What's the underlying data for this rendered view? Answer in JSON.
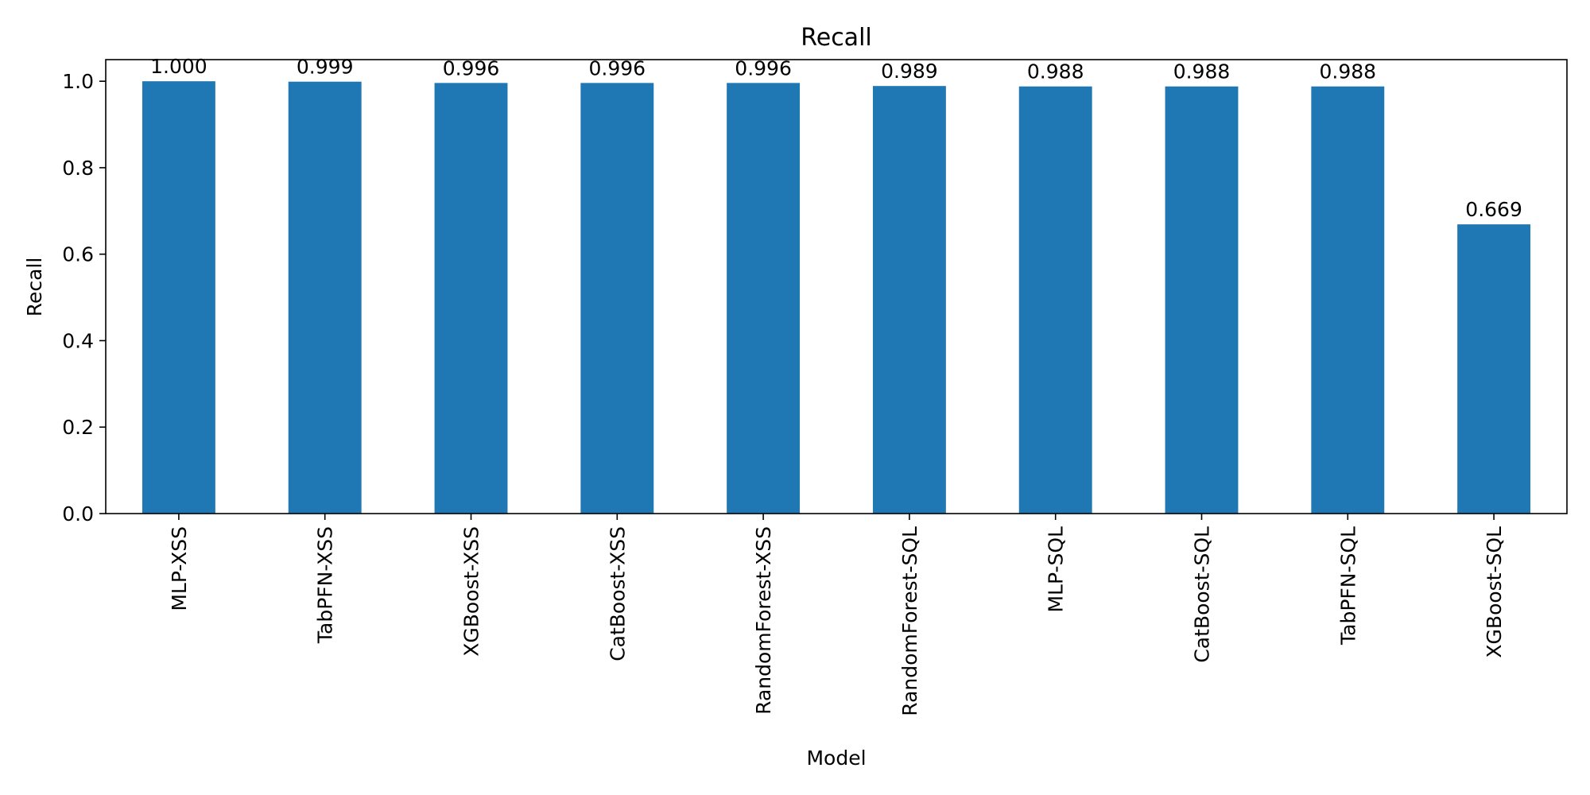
{
  "chart_data": {
    "type": "bar",
    "title": "Recall",
    "xlabel": "Model",
    "ylabel": "Recall",
    "ylim": [
      0,
      1.05
    ],
    "yticks": [
      "0.0",
      "0.2",
      "0.4",
      "0.6",
      "0.8",
      "1.0"
    ],
    "grid": false,
    "bar_color": "#1f77b4",
    "categories": [
      "MLP-XSS",
      "TabPFN-XSS",
      "XGBoost-XSS",
      "CatBoost-XSS",
      "RandomForest-XSS",
      "RandomForest-SQL",
      "MLP-SQL",
      "CatBoost-SQL",
      "TabPFN-SQL",
      "XGBoost-SQL"
    ],
    "values": [
      1.0,
      0.999,
      0.996,
      0.996,
      0.996,
      0.989,
      0.988,
      0.988,
      0.988,
      0.669
    ],
    "data_labels": [
      "1.000",
      "0.999",
      "0.996",
      "0.996",
      "0.996",
      "0.989",
      "0.988",
      "0.988",
      "0.988",
      "0.669"
    ]
  }
}
